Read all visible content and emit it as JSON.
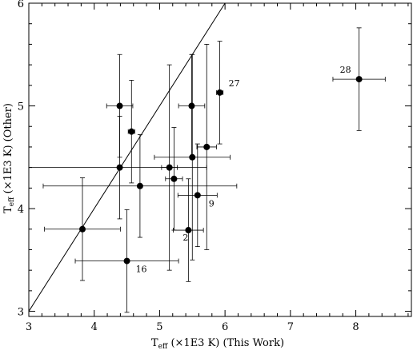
{
  "chart_data": {
    "type": "scatter",
    "title": "",
    "xlabel": {
      "main": "T",
      "sub": "eff",
      "rest": " (×1E3 K) (This Work)"
    },
    "ylabel": {
      "main": "T",
      "sub": "eff",
      "rest": " (×1E3 K) (Other)"
    },
    "xlim": [
      3,
      8.85
    ],
    "ylim": [
      2.95,
      6.0
    ],
    "xticks": [
      3,
      4,
      5,
      6,
      7,
      8
    ],
    "yticks": [
      3,
      4,
      5,
      6
    ],
    "grid": false,
    "reference_line": {
      "name": "one-to-one",
      "from": [
        3,
        3
      ],
      "to": [
        6,
        6
      ]
    },
    "points": [
      {
        "x": 3.82,
        "y": 3.8,
        "xerr": [
          0.58,
          0.58
        ],
        "yerr": [
          0.5,
          0.5
        ],
        "label": ""
      },
      {
        "x": 4.39,
        "y": 4.4,
        "xerr": [
          1.39,
          1.33
        ],
        "yerr": [
          0.5,
          0.5
        ],
        "label": ""
      },
      {
        "x": 4.39,
        "y": 5.0,
        "xerr": [
          0.2,
          0.2
        ],
        "yerr": [
          0.5,
          0.5
        ],
        "label": ""
      },
      {
        "x": 4.57,
        "y": 4.75,
        "xerr": [
          0.05,
          0.05
        ],
        "yerr": [
          0.5,
          0.5
        ],
        "label": ""
      },
      {
        "x": 4.7,
        "y": 4.22,
        "xerr": [
          1.48,
          1.48
        ],
        "yerr": [
          0.5,
          0.5
        ],
        "label": ""
      },
      {
        "x": 4.5,
        "y": 3.49,
        "xerr": [
          0.79,
          0.79
        ],
        "yerr": [
          0.5,
          0.5
        ],
        "label": "16"
      },
      {
        "x": 5.15,
        "y": 4.4,
        "xerr": [
          0.12,
          0.12
        ],
        "yerr": [
          1.0,
          1.0
        ],
        "label": ""
      },
      {
        "x": 5.22,
        "y": 4.29,
        "xerr": [
          0.13,
          0.13
        ],
        "yerr": [
          0.5,
          0.5
        ],
        "label": ""
      },
      {
        "x": 5.44,
        "y": 3.79,
        "xerr": [
          0.23,
          0.23
        ],
        "yerr": [
          0.5,
          0.5
        ],
        "label": "2"
      },
      {
        "x": 5.49,
        "y": 5.0,
        "xerr": [
          0.2,
          0.2
        ],
        "yerr": [
          0.5,
          0.5
        ],
        "label": ""
      },
      {
        "x": 5.5,
        "y": 4.5,
        "xerr": [
          0.58,
          0.58
        ],
        "yerr": [
          1.0,
          1.0
        ],
        "label": ""
      },
      {
        "x": 5.58,
        "y": 4.13,
        "xerr": [
          0.3,
          0.3
        ],
        "yerr": [
          0.5,
          0.5
        ],
        "label": "9"
      },
      {
        "x": 5.72,
        "y": 4.6,
        "xerr": [
          0.15,
          0.15
        ],
        "yerr": [
          1.0,
          1.0
        ],
        "label": ""
      },
      {
        "x": 5.92,
        "y": 5.13,
        "xerr": [
          0.05,
          0.05
        ],
        "yerr": [
          0.5,
          0.5
        ],
        "label": "27"
      },
      {
        "x": 8.05,
        "y": 5.26,
        "xerr": [
          0.4,
          0.4
        ],
        "yerr": [
          0.5,
          0.5
        ],
        "label": "28"
      }
    ]
  }
}
